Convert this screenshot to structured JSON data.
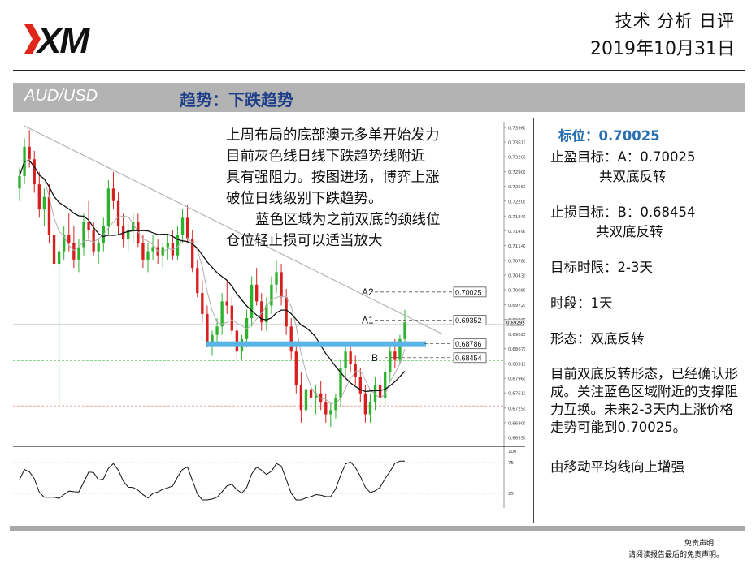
{
  "header": {
    "logo_text": "XM",
    "report_type": "技术 分析 日评",
    "date": "2019年10月31日"
  },
  "banner": {
    "pair": "AUD/USD",
    "trend": "趋势：下跌趋势"
  },
  "annotation": {
    "line1": "上周布局的底部澳元多单开始发力",
    "line2": "目前灰色线日线下跌趋势线附近",
    "line3": "具有强阻力。按图进场，博弈上涨",
    "line4": "破位日线级别下跌趋势。",
    "line5": "蓝色区域为之前双底的颈线位",
    "line6": "仓位轻止损可以适当放大"
  },
  "side": {
    "level": "标位：0.70025",
    "take_profit": "止盈目标：A：0.70025",
    "take_profit_note": "共双底反转",
    "stop_loss": "止损目标：B：0.68454",
    "stop_loss_note": "共双底反转",
    "horizon": "目标时限：2-3天",
    "timeframe": "时段：1天",
    "pattern": "形态：双底反转",
    "analysis": "目前双底反转形态，已经确认形成。关注蓝色区域附近的支撑阻力互换。未来2-3天内上涨价格走势可能到0.70025。",
    "ma_note": "由移动平均线向上增强"
  },
  "disclaimer": {
    "title": "免责声明",
    "text": "请阅读报告最后的免责声明。"
  },
  "chart_data": {
    "type": "candlestick",
    "price_axis": {
      "ylim": [
        0.6645,
        0.7402
      ],
      "ticks": [
        "0.73960",
        "0.73610",
        "0.73260",
        "0.72900",
        "0.72550",
        "0.72200",
        "0.71840",
        "0.71490",
        "0.71140",
        "0.70780",
        "0.70430",
        "0.70080",
        "0.69720",
        "0.69370",
        "0.69020",
        "0.68670",
        "0.68310",
        "0.67960",
        "0.67610",
        "0.67250",
        "0.66900",
        "0.66550"
      ],
      "current_price_label": "0.69295"
    },
    "levels": [
      {
        "name": "A2",
        "value": "0.70025"
      },
      {
        "name": "A1",
        "value": "0.69352"
      },
      {
        "name": "",
        "value": "0.68786"
      },
      {
        "name": "B",
        "value": "0.68454"
      }
    ],
    "candles": [
      [
        0.725,
        0.73,
        0.722,
        0.728
      ],
      [
        0.728,
        0.737,
        0.726,
        0.735
      ],
      [
        0.735,
        0.739,
        0.73,
        0.732
      ],
      [
        0.732,
        0.734,
        0.724,
        0.726
      ],
      [
        0.726,
        0.729,
        0.718,
        0.72
      ],
      [
        0.72,
        0.725,
        0.716,
        0.723
      ],
      [
        0.723,
        0.726,
        0.712,
        0.714
      ],
      [
        0.714,
        0.717,
        0.705,
        0.707
      ],
      [
        0.707,
        0.712,
        0.673,
        0.71
      ],
      [
        0.71,
        0.716,
        0.708,
        0.714
      ],
      [
        0.714,
        0.719,
        0.71,
        0.712
      ],
      [
        0.712,
        0.716,
        0.706,
        0.708
      ],
      [
        0.708,
        0.713,
        0.705,
        0.711
      ],
      [
        0.711,
        0.719,
        0.709,
        0.717
      ],
      [
        0.717,
        0.722,
        0.713,
        0.715
      ],
      [
        0.715,
        0.717,
        0.709,
        0.71
      ],
      [
        0.71,
        0.713,
        0.707,
        0.712
      ],
      [
        0.712,
        0.718,
        0.71,
        0.716
      ],
      [
        0.716,
        0.727,
        0.714,
        0.725
      ],
      [
        0.725,
        0.729,
        0.72,
        0.722
      ],
      [
        0.722,
        0.724,
        0.714,
        0.716
      ],
      [
        0.716,
        0.719,
        0.711,
        0.713
      ],
      [
        0.713,
        0.717,
        0.71,
        0.715
      ],
      [
        0.715,
        0.719,
        0.712,
        0.717
      ],
      [
        0.717,
        0.719,
        0.711,
        0.712
      ],
      [
        0.712,
        0.714,
        0.706,
        0.708
      ],
      [
        0.708,
        0.712,
        0.705,
        0.71
      ],
      [
        0.71,
        0.714,
        0.708,
        0.711
      ],
      [
        0.711,
        0.713,
        0.707,
        0.709
      ],
      [
        0.709,
        0.712,
        0.706,
        0.711
      ],
      [
        0.711,
        0.714,
        0.708,
        0.712
      ],
      [
        0.712,
        0.715,
        0.708,
        0.709
      ],
      [
        0.709,
        0.716,
        0.708,
        0.714
      ],
      [
        0.714,
        0.72,
        0.712,
        0.718
      ],
      [
        0.718,
        0.721,
        0.712,
        0.713
      ],
      [
        0.713,
        0.715,
        0.705,
        0.706
      ],
      [
        0.706,
        0.708,
        0.699,
        0.7
      ],
      [
        0.7,
        0.703,
        0.693,
        0.695
      ],
      [
        0.695,
        0.697,
        0.687,
        0.688
      ],
      [
        0.688,
        0.691,
        0.685,
        0.69
      ],
      [
        0.69,
        0.694,
        0.688,
        0.692
      ],
      [
        0.692,
        0.7,
        0.69,
        0.698
      ],
      [
        0.698,
        0.703,
        0.695,
        0.697
      ],
      [
        0.697,
        0.699,
        0.69,
        0.691
      ],
      [
        0.691,
        0.693,
        0.684,
        0.686
      ],
      [
        0.686,
        0.69,
        0.684,
        0.689
      ],
      [
        0.689,
        0.696,
        0.687,
        0.694
      ],
      [
        0.694,
        0.704,
        0.692,
        0.702
      ],
      [
        0.702,
        0.706,
        0.697,
        0.698
      ],
      [
        0.698,
        0.7,
        0.691,
        0.693
      ],
      [
        0.693,
        0.699,
        0.691,
        0.697
      ],
      [
        0.697,
        0.704,
        0.695,
        0.702
      ],
      [
        0.702,
        0.708,
        0.7,
        0.705
      ],
      [
        0.705,
        0.707,
        0.697,
        0.699
      ],
      [
        0.699,
        0.701,
        0.69,
        0.692
      ],
      [
        0.692,
        0.694,
        0.684,
        0.686
      ],
      [
        0.686,
        0.688,
        0.676,
        0.678
      ],
      [
        0.678,
        0.681,
        0.669,
        0.672
      ],
      [
        0.672,
        0.679,
        0.67,
        0.677
      ],
      [
        0.677,
        0.68,
        0.673,
        0.675
      ],
      [
        0.675,
        0.678,
        0.671,
        0.676
      ],
      [
        0.676,
        0.679,
        0.672,
        0.674
      ],
      [
        0.674,
        0.676,
        0.669,
        0.671
      ],
      [
        0.671,
        0.674,
        0.668,
        0.672
      ],
      [
        0.672,
        0.676,
        0.67,
        0.675
      ],
      [
        0.675,
        0.684,
        0.673,
        0.682
      ],
      [
        0.682,
        0.688,
        0.68,
        0.686
      ],
      [
        0.686,
        0.688,
        0.681,
        0.683
      ],
      [
        0.683,
        0.685,
        0.678,
        0.68
      ],
      [
        0.68,
        0.682,
        0.674,
        0.676
      ],
      [
        0.676,
        0.678,
        0.669,
        0.671
      ],
      [
        0.671,
        0.676,
        0.669,
        0.674
      ],
      [
        0.674,
        0.68,
        0.672,
        0.678
      ],
      [
        0.678,
        0.68,
        0.673,
        0.675
      ],
      [
        0.675,
        0.683,
        0.673,
        0.681
      ],
      [
        0.681,
        0.688,
        0.679,
        0.686
      ],
      [
        0.686,
        0.689,
        0.682,
        0.684
      ],
      [
        0.684,
        0.69,
        0.683,
        0.689
      ],
      [
        0.689,
        0.696,
        0.688,
        0.693
      ]
    ]
  },
  "colors": {
    "bull": "#2db22d",
    "bear": "#d62020",
    "blue_zone": "#5ab4e8",
    "trendline": "#b5b5b5",
    "banner_bg": "#b3b3b3",
    "logo_red": "#e0261b"
  }
}
